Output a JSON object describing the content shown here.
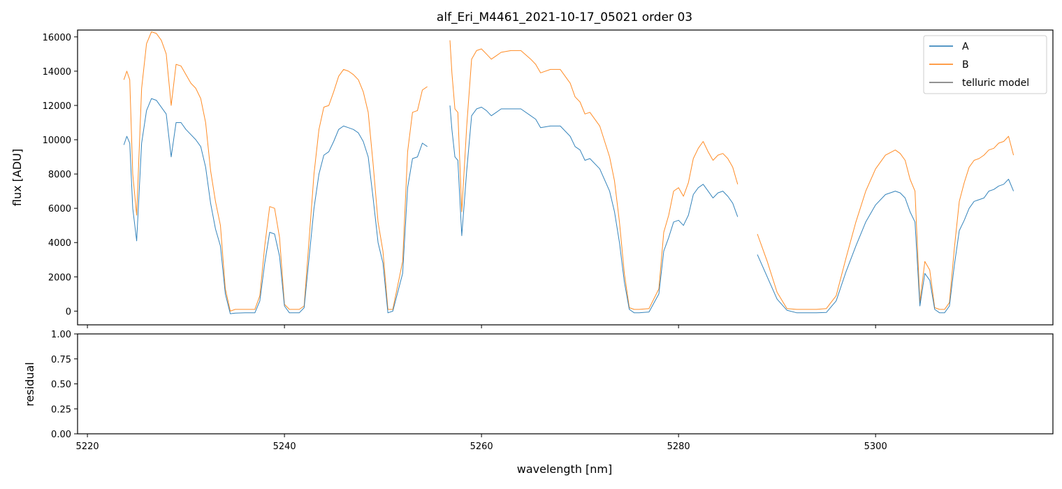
{
  "chart_data": [
    {
      "type": "line",
      "title": "alf_Eri_M4461_2021-10-17_05021  order 03",
      "xlabel": "",
      "ylabel": "flux [ADU]",
      "xlim": [
        5219,
        5318
      ],
      "ylim": [
        -800,
        16400
      ],
      "yticks": [
        0,
        2000,
        4000,
        6000,
        8000,
        10000,
        12000,
        14000,
        16000
      ],
      "xticks": [
        5220,
        5240,
        5260,
        5280,
        5300
      ],
      "grid": false,
      "legend": "top-right",
      "series": [
        {
          "name": "A",
          "color": "#1f77b4",
          "segments": [
            {
              "x": [
                5223.7,
                5224.0,
                5224.3,
                5224.6,
                5225.0,
                5225.5,
                5226.0,
                5226.5,
                5227.0,
                5227.5,
                5228.0,
                5228.5,
                5229.0,
                5229.5,
                5230.0,
                5230.5,
                5231.0,
                5231.5,
                5232.0,
                5232.5,
                5233.0,
                5233.5,
                5234.0,
                5234.5,
                5235.0,
                5236.0,
                5237.0,
                5237.5,
                5238.0,
                5238.5,
                5239.0,
                5239.5,
                5240.0,
                5240.5,
                5241.0,
                5241.5,
                5242.0,
                5243.0,
                5243.5,
                5244.0,
                5244.5,
                5245.0,
                5245.5,
                5246.0,
                5246.5,
                5247.0,
                5247.5,
                5248.0,
                5248.5,
                5249.0,
                5249.5,
                5250.0,
                5250.5,
                5251.0,
                5252.0,
                5252.5,
                5253.0,
                5253.5,
                5254.0,
                5254.5
              ],
              "y": [
                9700,
                10200,
                9800,
                6000,
                4100,
                9800,
                11700,
                12400,
                12300,
                11900,
                11500,
                9000,
                11000,
                11000,
                10600,
                10300,
                10000,
                9600,
                8400,
                6300,
                4800,
                3800,
                1000,
                -150,
                -120,
                -100,
                -100,
                600,
                2800,
                4600,
                4500,
                3200,
                300,
                -100,
                -100,
                -100,
                200,
                6000,
                8000,
                9100,
                9300,
                9900,
                10600,
                10800,
                10700,
                10600,
                10400,
                9900,
                9000,
                6600,
                4000,
                2800,
                -100,
                0,
                2200,
                7200,
                8900,
                9000,
                9800,
                9600
              ]
            },
            {
              "x": [
                5256.8,
                5257.0,
                5257.3,
                5257.6,
                5258.0,
                5258.5,
                5259.0,
                5259.5,
                5260.0,
                5260.5,
                5261.0,
                5261.5,
                5262.0,
                5263.0,
                5264.0,
                5265.0,
                5265.5,
                5266.0,
                5267.0,
                5268.0,
                5269.0,
                5269.5,
                5270.0,
                5270.5,
                5271.0,
                5272.0,
                5273.0,
                5273.5,
                5274.0,
                5274.5,
                5275.0,
                5275.5,
                5276.0,
                5277.0,
                5278.0,
                5278.5,
                5279.0,
                5279.5,
                5280.0,
                5280.5,
                5281.0,
                5281.5,
                5282.0,
                5282.5,
                5283.0,
                5283.5,
                5284.0,
                5284.5,
                5285.0,
                5285.5,
                5286.0
              ],
              "y": [
                12000,
                10600,
                9000,
                8800,
                4400,
                8200,
                11400,
                11800,
                11900,
                11700,
                11400,
                11600,
                11800,
                11800,
                11800,
                11400,
                11200,
                10700,
                10800,
                10800,
                10200,
                9600,
                9400,
                8800,
                8900,
                8300,
                7000,
                5800,
                4000,
                1700,
                100,
                -100,
                -100,
                -50,
                1000,
                3500,
                4300,
                5200,
                5300,
                5000,
                5600,
                6800,
                7200,
                7400,
                7000,
                6600,
                6900,
                7000,
                6700,
                6300,
                5500
              ]
            },
            {
              "x": [
                5288.0,
                5289.0,
                5290.0,
                5291.0,
                5292.0,
                5293.0,
                5294.0,
                5295.0,
                5296.0,
                5297.0,
                5298.0,
                5299.0,
                5300.0,
                5301.0,
                5302.0,
                5302.5,
                5303.0,
                5303.5,
                5304.0,
                5304.5,
                5305.0,
                5305.5,
                5306.0,
                5306.5,
                5307.0,
                5307.5,
                5308.0,
                5308.5,
                5309.0,
                5309.5,
                5310.0,
                5310.5,
                5311.0,
                5311.5,
                5312.0,
                5312.5,
                5313.0,
                5313.5,
                5314.0
              ],
              "y": [
                3300,
                2000,
                700,
                50,
                -100,
                -100,
                -100,
                -80,
                600,
                2300,
                3800,
                5200,
                6200,
                6800,
                7000,
                6900,
                6600,
                5800,
                5200,
                300,
                2200,
                1800,
                100,
                -100,
                -100,
                300,
                2700,
                4700,
                5300,
                6000,
                6400,
                6500,
                6600,
                7000,
                7100,
                7300,
                7400,
                7700,
                7000
              ]
            }
          ]
        },
        {
          "name": "B",
          "color": "#ff7f0e",
          "segments": [
            {
              "x": [
                5223.7,
                5224.0,
                5224.3,
                5224.6,
                5225.0,
                5225.5,
                5226.0,
                5226.5,
                5227.0,
                5227.5,
                5228.0,
                5228.5,
                5229.0,
                5229.5,
                5230.0,
                5230.5,
                5231.0,
                5231.5,
                5232.0,
                5232.5,
                5233.0,
                5233.5,
                5234.0,
                5234.5,
                5235.0,
                5236.0,
                5237.0,
                5237.5,
                5238.0,
                5238.5,
                5239.0,
                5239.5,
                5240.0,
                5240.5,
                5241.0,
                5241.5,
                5242.0,
                5243.0,
                5243.5,
                5244.0,
                5244.5,
                5245.0,
                5245.5,
                5246.0,
                5246.5,
                5247.0,
                5247.5,
                5248.0,
                5248.5,
                5249.0,
                5249.5,
                5250.0,
                5250.5,
                5251.0,
                5252.0,
                5252.5,
                5253.0,
                5253.5,
                5254.0,
                5254.5
              ],
              "y": [
                13500,
                14000,
                13500,
                8000,
                5600,
                13000,
                15600,
                16300,
                16200,
                15800,
                15000,
                12000,
                14400,
                14300,
                13800,
                13300,
                13000,
                12400,
                11000,
                8200,
                6400,
                5000,
                1300,
                0,
                100,
                100,
                100,
                900,
                3800,
                6100,
                6000,
                4300,
                400,
                100,
                100,
                100,
                300,
                8000,
                10600,
                11900,
                12000,
                12800,
                13700,
                14100,
                14000,
                13800,
                13500,
                12800,
                11600,
                8600,
                5200,
                3500,
                100,
                100,
                2900,
                9300,
                11600,
                11700,
                12900,
                13100
              ]
            },
            {
              "x": [
                5256.8,
                5257.0,
                5257.3,
                5257.6,
                5258.0,
                5258.5,
                5259.0,
                5259.5,
                5260.0,
                5260.5,
                5261.0,
                5261.5,
                5262.0,
                5263.0,
                5264.0,
                5265.0,
                5265.5,
                5266.0,
                5267.0,
                5268.0,
                5269.0,
                5269.5,
                5270.0,
                5270.5,
                5271.0,
                5272.0,
                5273.0,
                5273.5,
                5274.0,
                5274.5,
                5275.0,
                5275.5,
                5276.0,
                5277.0,
                5278.0,
                5278.5,
                5279.0,
                5279.5,
                5280.0,
                5280.5,
                5281.0,
                5281.5,
                5282.0,
                5282.5,
                5283.0,
                5283.5,
                5284.0,
                5284.5,
                5285.0,
                5285.5,
                5286.0
              ],
              "y": [
                15800,
                13900,
                11800,
                11600,
                5800,
                10800,
                14700,
                15200,
                15300,
                15000,
                14700,
                14900,
                15100,
                15200,
                15200,
                14700,
                14400,
                13900,
                14100,
                14100,
                13300,
                12500,
                12200,
                11500,
                11600,
                10800,
                9000,
                7600,
                5200,
                2200,
                200,
                100,
                100,
                150,
                1300,
                4600,
                5600,
                7000,
                7200,
                6700,
                7500,
                8900,
                9500,
                9900,
                9300,
                8800,
                9100,
                9200,
                8900,
                8400,
                7400
              ]
            },
            {
              "x": [
                5288.0,
                5289.0,
                5290.0,
                5291.0,
                5292.0,
                5293.0,
                5294.0,
                5295.0,
                5296.0,
                5297.0,
                5298.0,
                5299.0,
                5300.0,
                5301.0,
                5302.0,
                5302.5,
                5303.0,
                5303.5,
                5304.0,
                5304.5,
                5305.0,
                5305.5,
                5306.0,
                5306.5,
                5307.0,
                5307.5,
                5308.0,
                5308.5,
                5309.0,
                5309.5,
                5310.0,
                5310.5,
                5311.0,
                5311.5,
                5312.0,
                5312.5,
                5313.0,
                5313.5,
                5314.0
              ],
              "y": [
                4500,
                2900,
                1100,
                150,
                100,
                100,
                100,
                150,
                900,
                3100,
                5200,
                7000,
                8300,
                9100,
                9400,
                9200,
                8800,
                7700,
                7000,
                500,
                2900,
                2400,
                200,
                100,
                100,
                500,
                3700,
                6400,
                7500,
                8400,
                8800,
                8900,
                9100,
                9400,
                9500,
                9800,
                9900,
                10200,
                9100
              ]
            }
          ]
        },
        {
          "name": "telluric model",
          "color": "#6e6e6e",
          "segments": []
        }
      ]
    },
    {
      "type": "line",
      "title": "",
      "xlabel": "wavelength [nm]",
      "ylabel": "residual",
      "xlim": [
        5219,
        5318
      ],
      "ylim": [
        0,
        1
      ],
      "yticks": [
        "0.00",
        "0.25",
        "0.50",
        "0.75",
        "1.00"
      ],
      "xticks": [
        5220,
        5240,
        5260,
        5280,
        5300
      ],
      "grid": false,
      "series": []
    }
  ]
}
